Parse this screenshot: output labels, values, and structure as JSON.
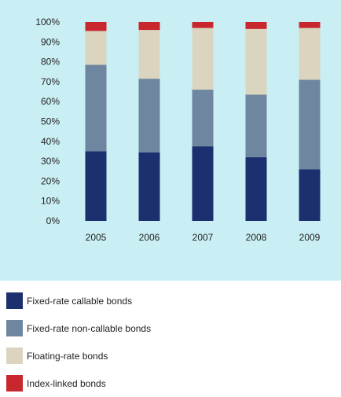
{
  "chart_data": {
    "type": "bar",
    "stacked": true,
    "categories": [
      "2005",
      "2006",
      "2007",
      "2008",
      "2009"
    ],
    "series": [
      {
        "name": "Fixed-rate callable bonds",
        "color": "#1c2f6e",
        "values": [
          35,
          34.5,
          37.5,
          32,
          26
        ]
      },
      {
        "name": "Fixed-rate non-callable bonds",
        "color": "#6f86a0",
        "values": [
          43.5,
          37,
          28.5,
          31.5,
          45
        ]
      },
      {
        "name": "Floating-rate bonds",
        "color": "#dbd5c0",
        "values": [
          17,
          24.5,
          31,
          33,
          26
        ]
      },
      {
        "name": "Index-linked bonds",
        "color": "#c8282d",
        "values": [
          4.5,
          4,
          3,
          3.5,
          3
        ]
      }
    ],
    "yticks": [
      "0%",
      "10%",
      "20%",
      "30%",
      "40%",
      "50%",
      "60%",
      "70%",
      "80%",
      "90%",
      "100%"
    ],
    "ylim": [
      0,
      100
    ],
    "grid": false,
    "legend_position": "bottom",
    "background_color": "#c9eff4"
  }
}
